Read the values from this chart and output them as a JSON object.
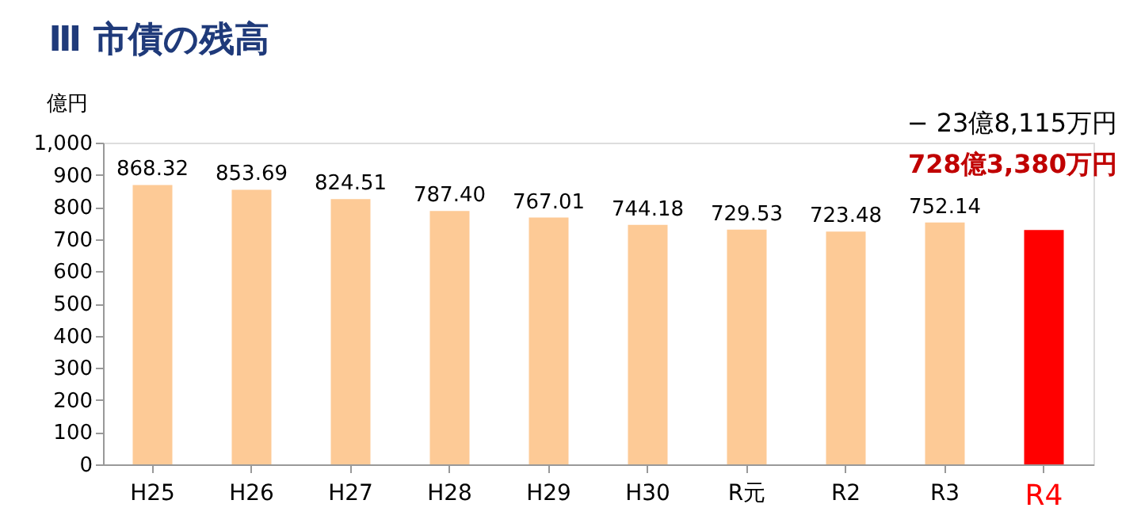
{
  "chart_data": {
    "type": "bar",
    "title": "Ⅲ 市債の残高",
    "ylabel": "億円",
    "categories": [
      "H25",
      "H26",
      "H27",
      "H28",
      "H29",
      "H30",
      "R元",
      "R2",
      "R3",
      "R4"
    ],
    "values": [
      868.32,
      853.69,
      824.51,
      787.4,
      767.01,
      744.18,
      729.53,
      723.48,
      752.14,
      728.338
    ],
    "value_labels": [
      "868.32",
      "853.69",
      "824.51",
      "787.40",
      "767.01",
      "744.18",
      "729.53",
      "723.48",
      "752.14",
      null
    ],
    "colors": [
      "#fdca96",
      "#fdca96",
      "#fdca96",
      "#fdca96",
      "#fdca96",
      "#fdca96",
      "#fdca96",
      "#fdca96",
      "#fdca96",
      "#ff0000"
    ],
    "ylim": [
      0,
      1000
    ],
    "yticks": [
      0,
      100,
      200,
      300,
      400,
      500,
      600,
      700,
      800,
      900,
      {
        "value": 1000,
        "label": "1,000"
      }
    ],
    "grid": false,
    "annotations": [
      "− 23億8,115万円",
      "728億3,380万円"
    ]
  }
}
